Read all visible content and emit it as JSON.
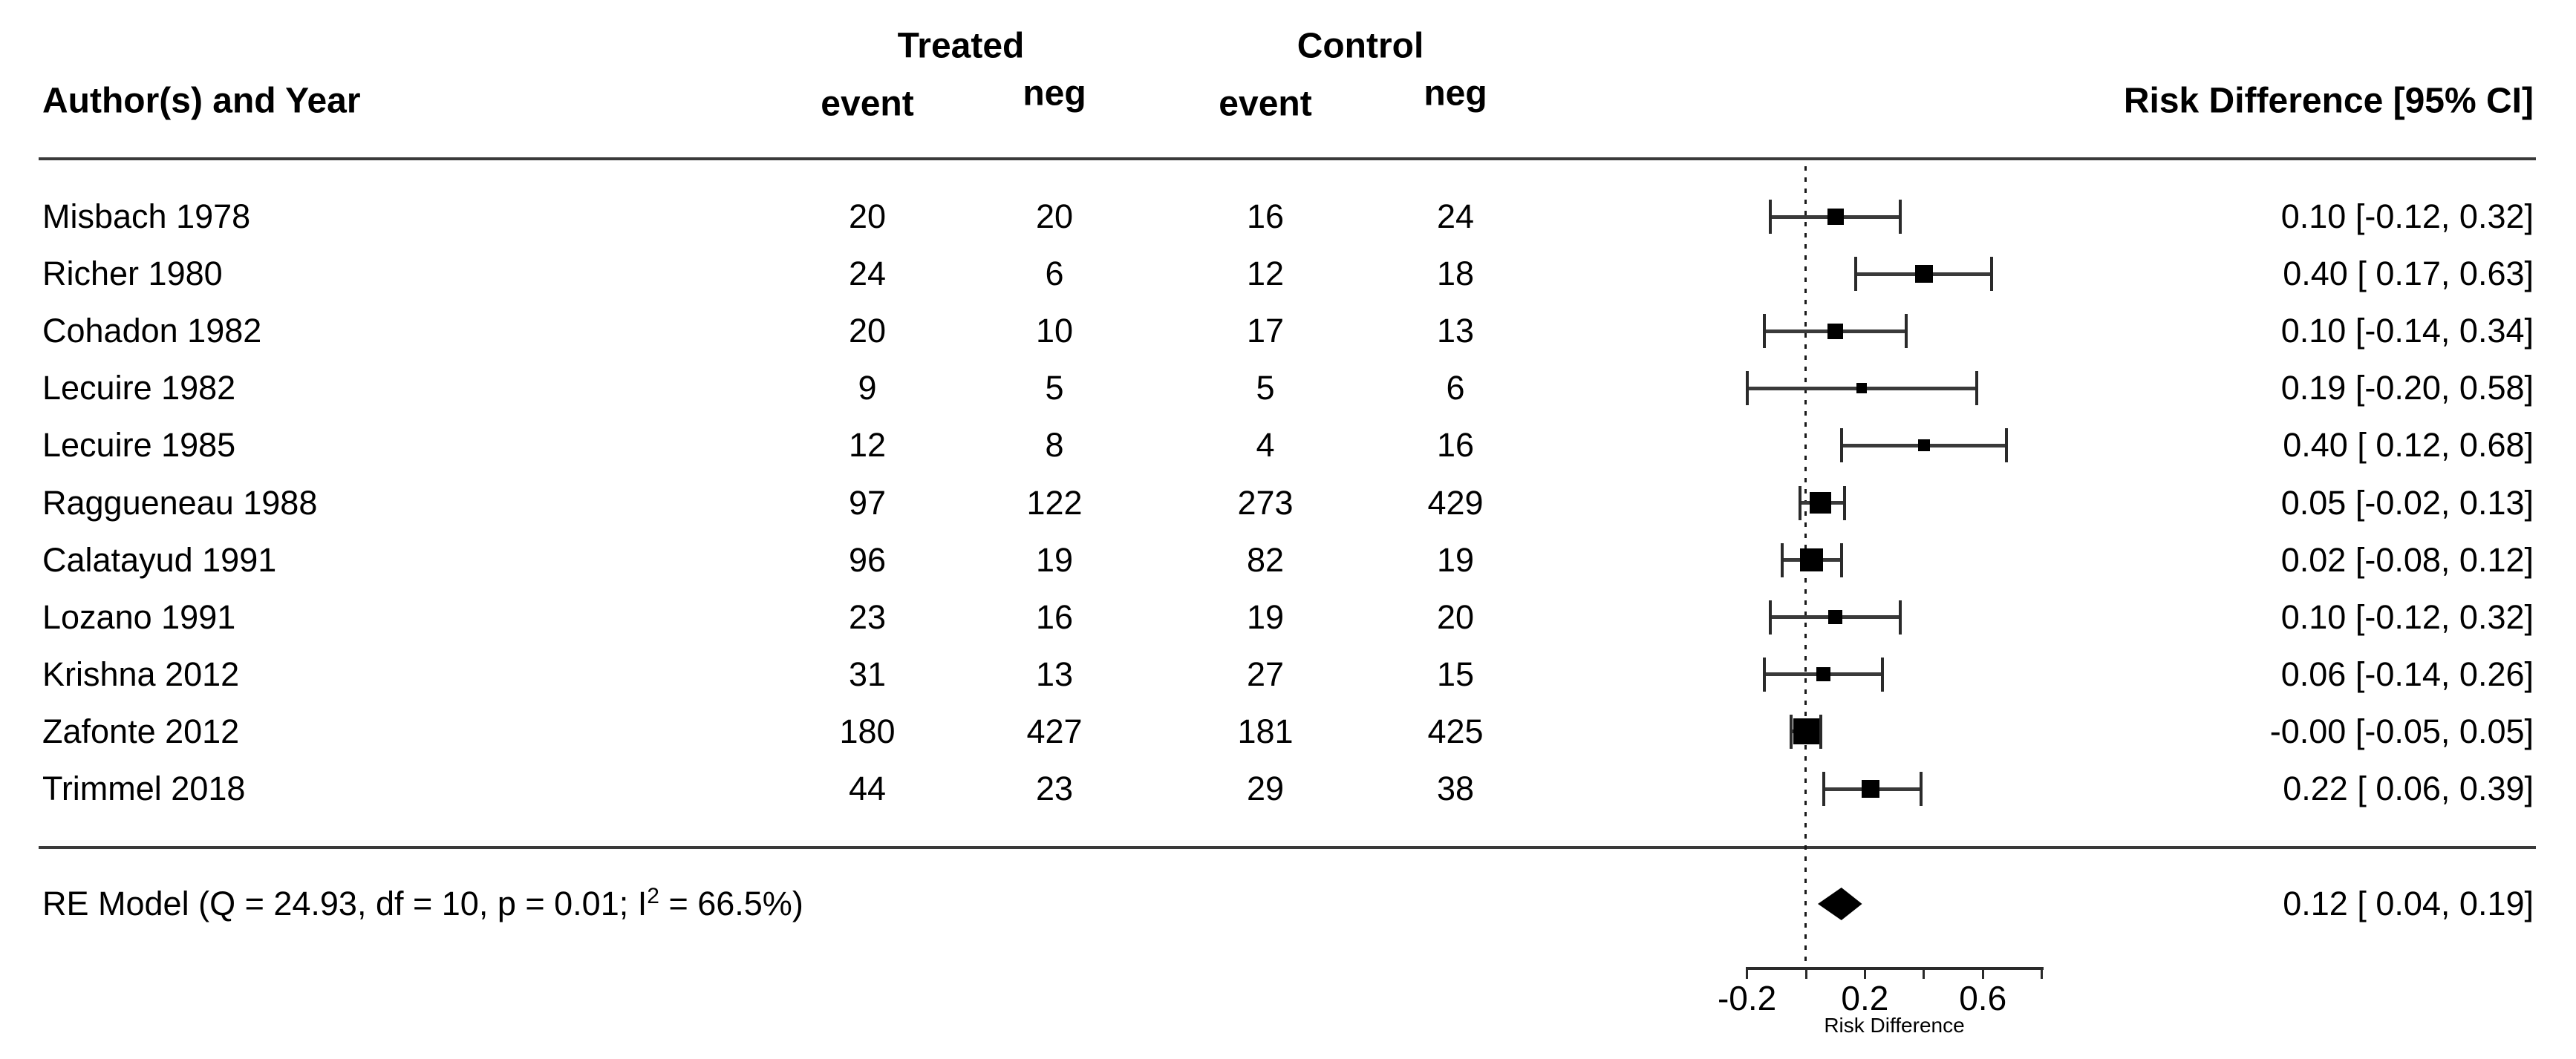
{
  "header": {
    "author_col": "Author(s) and Year",
    "group1": "Treated",
    "group2": "Control",
    "sub1_event": "event",
    "sub1_neg": "neg",
    "sub2_event": "event",
    "sub2_neg": "neg",
    "effect_col": "Risk Difference [95% CI]"
  },
  "summary_row": {
    "pre": "RE Model (Q = 24.93, df = 10, p = 0.01; I",
    "sup": "2",
    "post": " = 66.5%)",
    "ci_text": "0.12 [ 0.04, 0.19]"
  },
  "axis": {
    "title": "Risk Difference",
    "tick_labels": [
      {
        "x": -0.2,
        "label": "-0.2"
      },
      {
        "x": 0.2,
        "label": "0.2"
      },
      {
        "x": 0.6,
        "label": "0.6"
      }
    ]
  },
  "chart_data": {
    "type": "scatter",
    "subtype": "forest-plot",
    "title": "",
    "xlabel": "Risk Difference",
    "effect_measure": "Risk Difference [95% CI]",
    "x_axis": {
      "range": [
        -0.2,
        0.8
      ],
      "ticks": [
        -0.2,
        0,
        0.2,
        0.4,
        0.6,
        0.8
      ],
      "labeled_ticks": [
        -0.2,
        0.2,
        0.6
      ],
      "zero_reference_line": 0
    },
    "columns": [
      "Author(s) and Year",
      "Treated event",
      "Treated neg",
      "Control event",
      "Control neg",
      "Risk Difference [95% CI]"
    ],
    "studies": [
      {
        "label": "Misbach 1978",
        "t_event": 20,
        "t_neg": 20,
        "c_event": 16,
        "c_neg": 24,
        "est": 0.1,
        "lo": -0.12,
        "hi": 0.32,
        "ci_text": "0.10 [-0.12, 0.32]",
        "marker_px": 22
      },
      {
        "label": "Richer 1980",
        "t_event": 24,
        "t_neg": 6,
        "c_event": 12,
        "c_neg": 18,
        "est": 0.4,
        "lo": 0.17,
        "hi": 0.63,
        "ci_text": "0.40 [ 0.17, 0.63]",
        "marker_px": 24
      },
      {
        "label": "Cohadon 1982",
        "t_event": 20,
        "t_neg": 10,
        "c_event": 17,
        "c_neg": 13,
        "est": 0.1,
        "lo": -0.14,
        "hi": 0.34,
        "ci_text": "0.10 [-0.14, 0.34]",
        "marker_px": 21
      },
      {
        "label": "Lecuire 1982",
        "t_event": 9,
        "t_neg": 5,
        "c_event": 5,
        "c_neg": 6,
        "est": 0.19,
        "lo": -0.2,
        "hi": 0.58,
        "ci_text": "0.19 [-0.20, 0.58]",
        "marker_px": 14
      },
      {
        "label": "Lecuire 1985",
        "t_event": 12,
        "t_neg": 8,
        "c_event": 4,
        "c_neg": 16,
        "est": 0.4,
        "lo": 0.12,
        "hi": 0.68,
        "ci_text": "0.40 [ 0.12, 0.68]",
        "marker_px": 16
      },
      {
        "label": "Raggueneau 1988",
        "t_event": 97,
        "t_neg": 122,
        "c_event": 273,
        "c_neg": 429,
        "est": 0.05,
        "lo": -0.02,
        "hi": 0.13,
        "ci_text": "0.05 [-0.02, 0.13]",
        "marker_px": 29
      },
      {
        "label": "Calatayud 1991",
        "t_event": 96,
        "t_neg": 19,
        "c_event": 82,
        "c_neg": 19,
        "est": 0.02,
        "lo": -0.08,
        "hi": 0.12,
        "ci_text": "0.02 [-0.08, 0.12]",
        "marker_px": 31
      },
      {
        "label": "Lozano 1991",
        "t_event": 23,
        "t_neg": 16,
        "c_event": 19,
        "c_neg": 20,
        "est": 0.1,
        "lo": -0.12,
        "hi": 0.32,
        "ci_text": "0.10 [-0.12, 0.32]",
        "marker_px": 19
      },
      {
        "label": "Krishna 2012",
        "t_event": 31,
        "t_neg": 13,
        "c_event": 27,
        "c_neg": 15,
        "est": 0.06,
        "lo": -0.14,
        "hi": 0.26,
        "ci_text": "0.06 [-0.14, 0.26]",
        "marker_px": 19
      },
      {
        "label": "Zafonte 2012",
        "t_event": 180,
        "t_neg": 427,
        "c_event": 181,
        "c_neg": 425,
        "est": -0.0,
        "lo": -0.05,
        "hi": 0.05,
        "ci_text": "-0.00 [-0.05, 0.05]",
        "marker_px": 35
      },
      {
        "label": "Trimmel 2018",
        "t_event": 44,
        "t_neg": 23,
        "c_event": 29,
        "c_neg": 38,
        "est": 0.22,
        "lo": 0.06,
        "hi": 0.39,
        "ci_text": "0.22 [ 0.06, 0.39]",
        "marker_px": 24
      }
    ],
    "summary": {
      "model": "RE Model",
      "Q": 24.93,
      "df": 10,
      "p": 0.01,
      "I2_pct": 66.5,
      "est": 0.12,
      "lo": 0.04,
      "hi": 0.19,
      "ci_text": "0.12 [ 0.04, 0.19]"
    }
  }
}
